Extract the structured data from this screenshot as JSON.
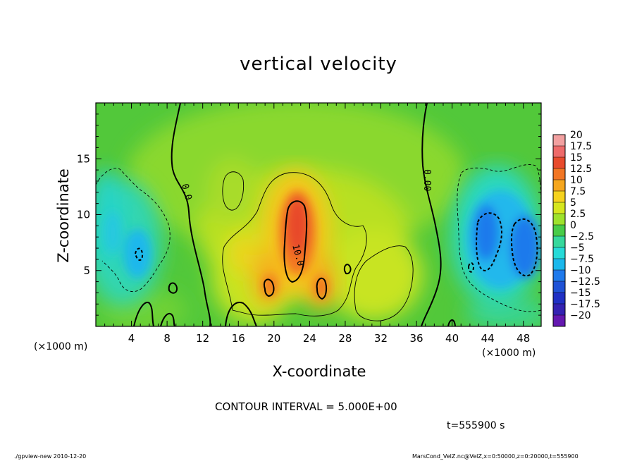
{
  "chart_data": {
    "type": "heatmap",
    "title": "vertical velocity",
    "xlabel": "X-coordinate",
    "ylabel": "Z-coordinate",
    "x_unit": "(×1000 m)",
    "xlim": [
      0,
      50
    ],
    "ylim": [
      0,
      20
    ],
    "x_ticks": [
      4,
      8,
      12,
      16,
      20,
      24,
      28,
      32,
      36,
      40,
      44,
      48
    ],
    "y_ticks": [
      5,
      10,
      15
    ],
    "colorbar": {
      "levels": [
        20,
        17.5,
        15,
        12.5,
        10,
        7.5,
        5,
        2.5,
        0,
        -2.5,
        -5,
        -7.5,
        -10,
        -12.5,
        -15,
        -17.5,
        -20
      ],
      "labels": [
        "20",
        "17.5",
        "15",
        "12.5",
        "10",
        "7.5",
        "5",
        "2.5",
        "0",
        "−2.5",
        "−5",
        "−7.5",
        "−10",
        "−12.5",
        "−15",
        "−17.5",
        "−20"
      ],
      "colors": [
        "#f2a0a0",
        "#ee6a6a",
        "#e84a2c",
        "#f27624",
        "#f5a61e",
        "#f5d21e",
        "#d6e61e",
        "#9ee22c",
        "#48cc48",
        "#36d89c",
        "#26dad8",
        "#1ab8ec",
        "#1f7aec",
        "#1f52d6",
        "#2030c4",
        "#3422b2",
        "#6418b0"
      ]
    },
    "contour_interval": "CONTOUR INTERVAL = 5.000E+00",
    "contour_labels": [
      "0.0",
      "10.0",
      "0.00"
    ],
    "features": [
      {
        "kind": "updraft",
        "x": 22.3,
        "z": 8.5,
        "w": 12
      },
      {
        "kind": "updraft",
        "x": 19.8,
        "z": 3.5,
        "w": 7
      },
      {
        "kind": "updraft",
        "x": 25.2,
        "z": 4.0,
        "w": 7
      },
      {
        "kind": "downdraft",
        "x": 46.0,
        "z": 7.5,
        "w": -11
      },
      {
        "kind": "downdraft",
        "x": 4.8,
        "z": 6.5,
        "w": -8
      }
    ],
    "time": "t=555900 s"
  },
  "footer": {
    "left": "./gpview-new   2010-12-20",
    "right": "MarsCond_VelZ.nc@VelZ,x=0:50000,z=0:20000,t=555900"
  }
}
